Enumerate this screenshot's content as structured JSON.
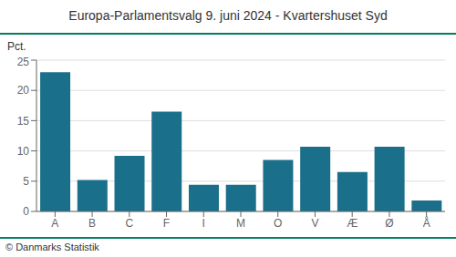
{
  "chart_data": {
    "type": "bar",
    "title": "Europa-Parlamentsvalg 9. juni 2024 - Kvartershuset Syd",
    "ylabel": "Pct.",
    "categories": [
      "A",
      "B",
      "C",
      "F",
      "I",
      "M",
      "O",
      "V",
      "Æ",
      "Ø",
      "Å"
    ],
    "values": [
      23.0,
      5.2,
      9.2,
      16.5,
      4.4,
      4.4,
      8.5,
      10.7,
      6.5,
      10.7,
      1.8
    ],
    "color": "#1a6f8a",
    "ylim": [
      0,
      25
    ],
    "yticks": [
      0,
      5,
      10,
      15,
      20,
      25
    ],
    "grid": true,
    "annotations": [
      "© Danmarks Statistik"
    ]
  }
}
